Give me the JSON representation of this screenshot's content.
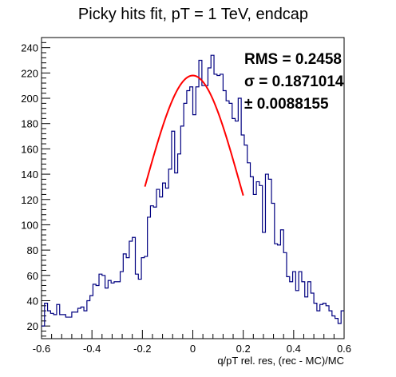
{
  "chart_data": {
    "type": "histogram",
    "title": "Picky hits fit, pT = 1 TeV, endcap",
    "xlabel": "q/pT rel. res, (rec - MC)/MC",
    "ylabel": "",
    "xlim": [
      -0.6,
      0.6
    ],
    "ylim": [
      10,
      248
    ],
    "x_ticks": [
      "-0.6",
      "-0.4",
      "-0.2",
      "0",
      "0.2",
      "0.4",
      "0.6"
    ],
    "y_ticks": [
      "20",
      "40",
      "60",
      "80",
      "100",
      "120",
      "140",
      "160",
      "180",
      "200",
      "220",
      "240"
    ],
    "y_tick_values": [
      20,
      40,
      60,
      80,
      100,
      120,
      140,
      160,
      180,
      200,
      220,
      240
    ],
    "bin_edges_start": -0.6,
    "bin_width": 0.012,
    "bin_values": [
      20,
      38,
      32,
      30,
      29,
      37,
      29,
      29,
      27,
      27,
      31,
      31,
      34,
      35,
      32,
      40,
      44,
      53,
      52,
      61,
      60,
      50,
      56,
      54,
      55,
      55,
      63,
      77,
      74,
      87,
      90,
      61,
      57,
      74,
      75,
      106,
      115,
      114,
      128,
      122,
      133,
      129,
      144,
      174,
      141,
      156,
      178,
      196,
      206,
      209,
      187,
      209,
      230,
      210,
      210,
      224,
      234,
      219,
      218,
      219,
      206,
      198,
      196,
      184,
      182,
      200,
      171,
      163,
      149,
      138,
      124,
      134,
      131,
      94,
      140,
      136,
      117,
      85,
      84,
      96,
      78,
      59,
      55,
      63,
      48,
      63,
      55,
      43,
      55,
      46,
      38,
      32,
      37,
      38,
      36,
      32,
      28,
      26,
      22,
      32
    ],
    "fit": {
      "type": "gaussian",
      "mean": 0.0,
      "amplitude": 218,
      "sigma": 0.1871014,
      "x_range": [
        -0.19,
        0.2
      ]
    },
    "colors": {
      "histogram": "#000080",
      "fit": "#ff0000",
      "axis": "#000000"
    },
    "grid": false,
    "legend": "none",
    "stats": {
      "rms": "RMS = 0.2458",
      "sigma": "σ = 0.1871014",
      "error": "± 0.0088155"
    }
  }
}
